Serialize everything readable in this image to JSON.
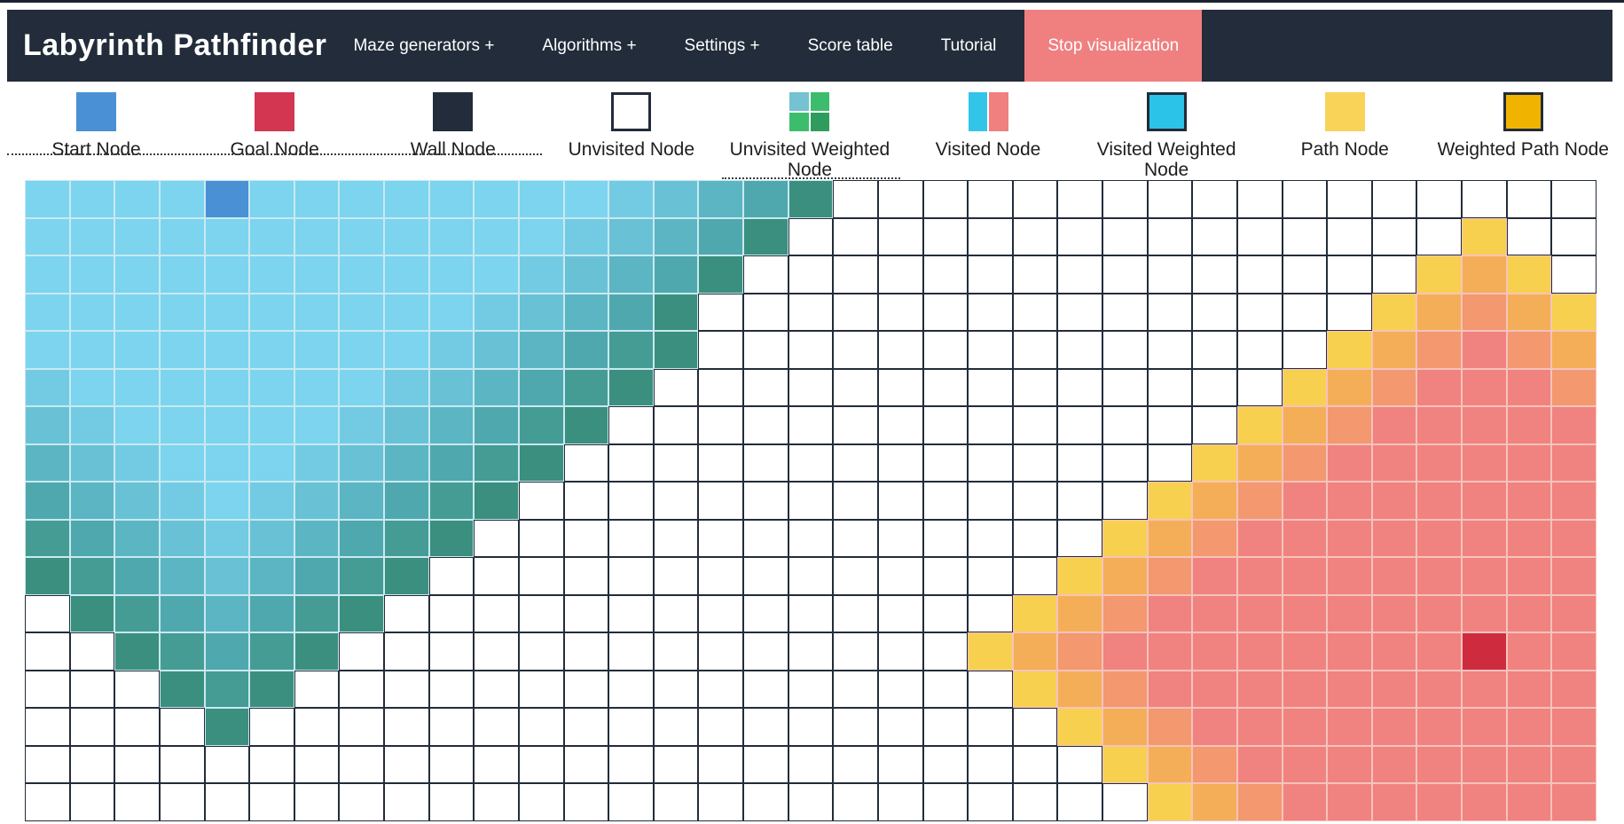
{
  "navbar": {
    "title": "Labyrinth Pathfinder",
    "items": [
      {
        "label": "Maze generators +"
      },
      {
        "label": "Algorithms +"
      },
      {
        "label": "Settings +"
      },
      {
        "label": "Score table"
      },
      {
        "label": "Tutorial"
      }
    ],
    "stop_button_label": "Stop visualization"
  },
  "legend": {
    "items": [
      {
        "type": "start",
        "label": "Start Node"
      },
      {
        "type": "goal",
        "label": "Goal Node"
      },
      {
        "type": "wall",
        "label": "Wall Node"
      },
      {
        "type": "unvisited",
        "label": "Unvisited Node"
      },
      {
        "type": "unvisited-weighted",
        "label": "Unvisited Weighted Node"
      },
      {
        "type": "visited",
        "label": "Visited Node"
      },
      {
        "type": "visited-weighted",
        "label": "Visited Weighted Node"
      },
      {
        "type": "path",
        "label": "Path Node"
      },
      {
        "type": "weighted-path",
        "label": "Weighted Path Node"
      }
    ]
  },
  "colors": {
    "navbar_bg": "#222c3a",
    "stop_button_bg": "#f08080",
    "nav_text": "#ffffff",
    "page_bg": "#ffffff",
    "cells": {
      "S": "#4a90d5",
      "G": "#cf2b3e",
      ".": "#ffffff",
      "a": "#7cd4ee",
      "b": "#73cbe3",
      "c": "#69c1d6",
      "d": "#5cb5c2",
      "e": "#4fa8ad",
      "f": "#459c94",
      "g": "#3a8f7e",
      "Y": "#f8d04f",
      "O": "#f5ae58",
      "o": "#f3986f",
      "r": "#f0837f"
    },
    "cell_borders": {
      "unvisited": "#222c3a",
      "visited": "#c9e9f1",
      "goalside": "#f6c3bc"
    },
    "legend_swatches": {
      "start": "#4a90d5",
      "goal": "#d23650",
      "wall": "#222c3a",
      "unvisited_bg": "#ffffff",
      "swatch_border": "#222c3a",
      "unvisited_weighted_quadrants": [
        "#74c2d2",
        "#3cbd6d",
        "#3cbd6d",
        "#2f9c5f"
      ],
      "visited_halves": [
        "#33c4ea",
        "#f0807f"
      ],
      "visited_weighted": "#2cc3e8",
      "path": "#f8d358",
      "weighted_path": "#f0b400"
    }
  },
  "grid": {
    "cols": 35,
    "rows": 17,
    "cell_codes": {
      "S": "start-node",
      "G": "goal-node",
      ".": "unvisited-node",
      "a_to_g": "visited-from-start gradient, a = lightest cyan, g = darkest green frontier",
      "Y": "frontier-yellow",
      "O": "frontier-orange",
      "o": "frontier-orange-salmon",
      "r": "visited-from-goal salmon"
    },
    "rows_data": [
      "aaaaSaaaaaaaabcdeg.................",
      "aaaaaaaaaaaabcdeg...............Y..",
      "aaaaaaaaaaabcdeg...............YOY.",
      "aaaaaaaaaabcdeg...............YOoOY",
      "aaaaaaaaabcdefg..............YOoroO",
      "baaaaaaabcdefg..............YOorrro",
      "cbaaaaabcdefg..............YOorrrrr",
      "dcbaaabcdefg..............YOorrrrrr",
      "edcbabcdefg..............YOorrrrrrr",
      "fedcbcdefg..............YOorrrrrrrr",
      "gfedcdefg..............YOorrrrrrrrr",
      ".gfedefg..............YOorrrrrrrrrr",
      "..gfefg..............YOorrrrrrrrGrr",
      "...gfg................YOorrrrrrrrrr",
      "....g..................YOorrrrrrrrr",
      "........................YOorrrrrrrr",
      ".........................YOorrrrrrr"
    ]
  }
}
